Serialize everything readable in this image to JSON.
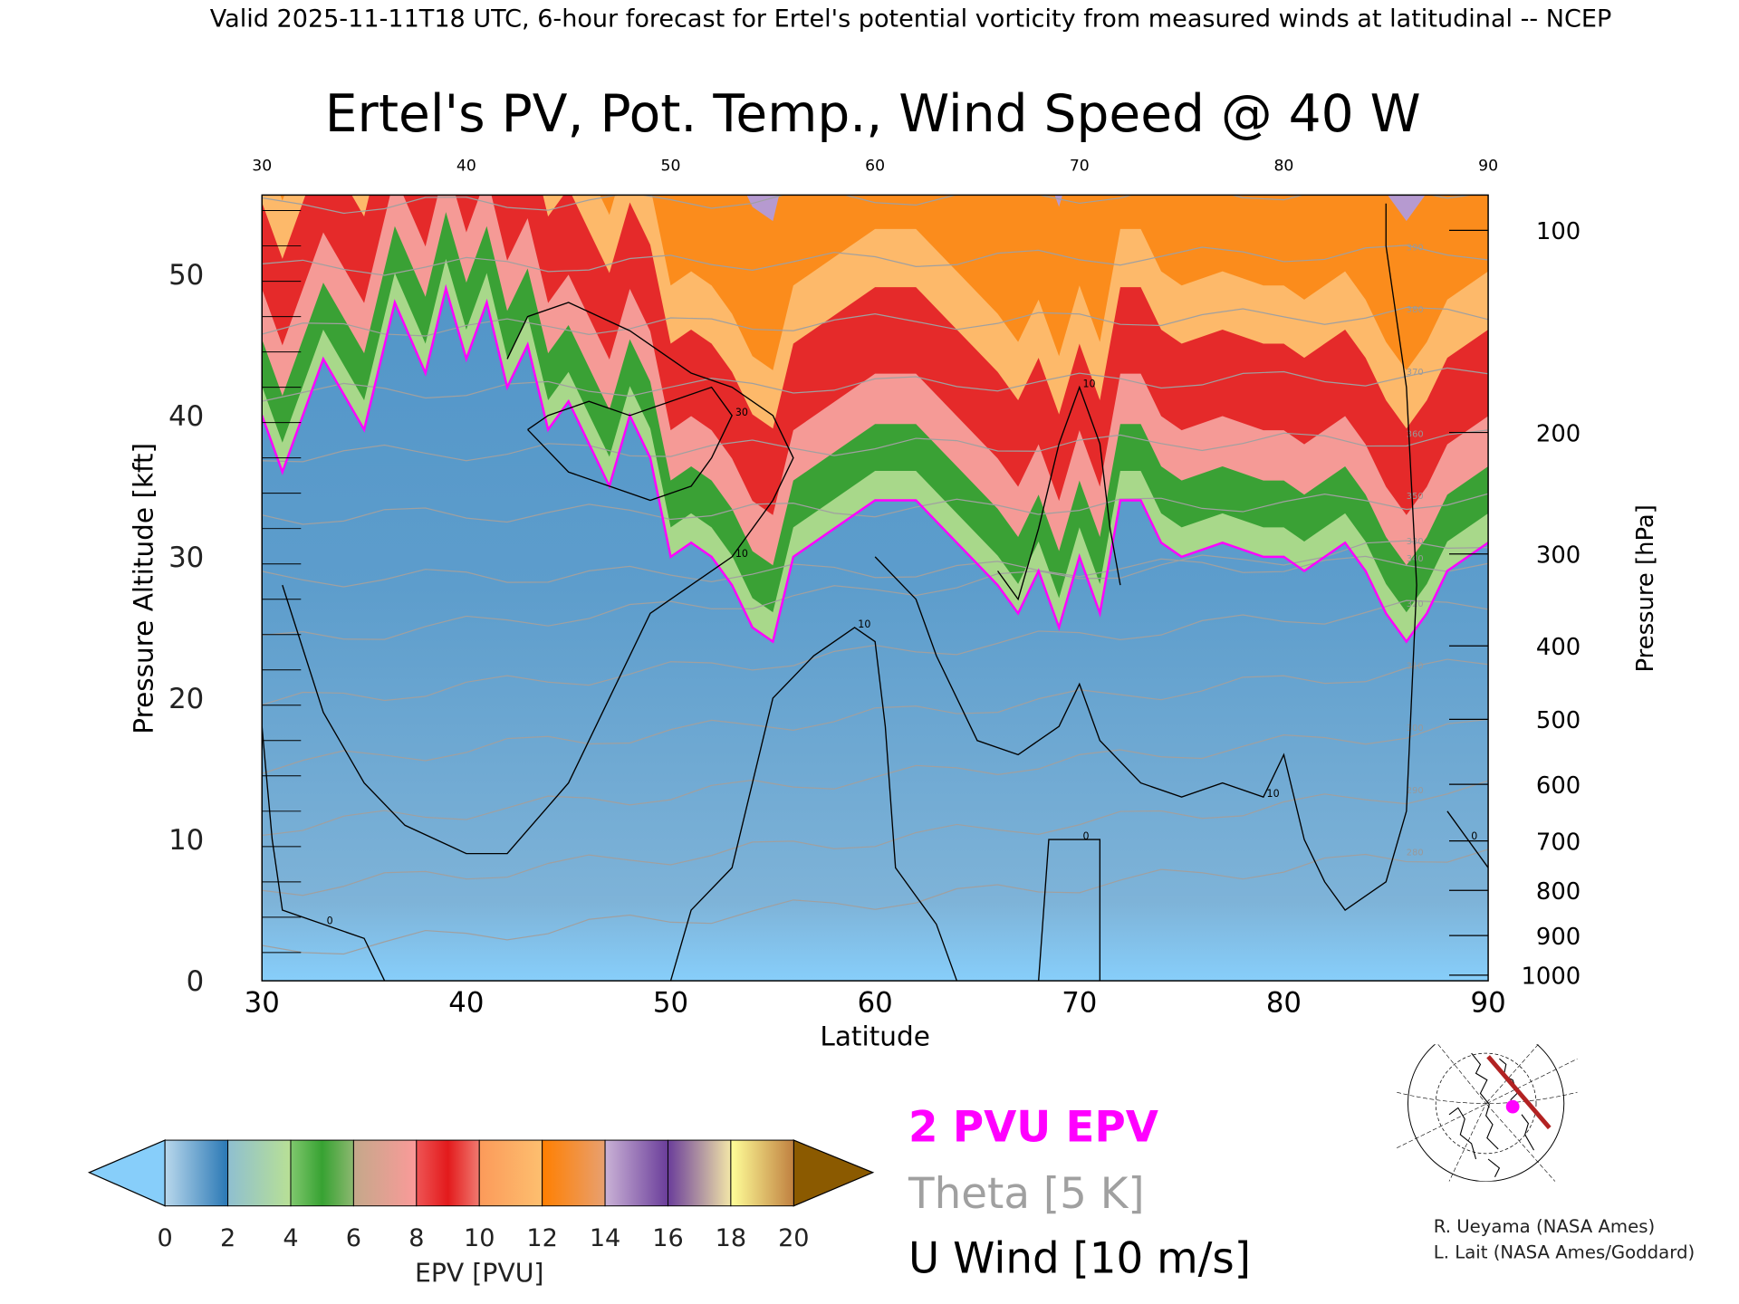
{
  "header": {
    "subtitle": "Valid 2025-11-11T18 UTC, 6-hour forecast for Ertel's potential vorticity from measured winds at latitudinal -- NCEP"
  },
  "chart_data": {
    "type": "heatmap",
    "title": "Ertel's PV, Pot. Temp., Wind Speed @ 40 W",
    "xlabel": "Latitude",
    "ylabel": "Pressure Altitude [kft]",
    "ylabel_right": "Pressure [hPa]",
    "xlim": [
      30,
      90
    ],
    "ylim": [
      0,
      55.6
    ],
    "x_ticks": [
      "30",
      "40",
      "50",
      "60",
      "70",
      "80",
      "90"
    ],
    "x_tick_values": [
      30,
      40,
      50,
      60,
      70,
      80,
      90
    ],
    "y_ticks": [
      "0",
      "10",
      "20",
      "30",
      "40",
      "50"
    ],
    "y_tick_values": [
      0,
      10,
      20,
      30,
      40,
      50
    ],
    "pressure_ticks": [
      {
        "label": "100",
        "kft": 53.1
      },
      {
        "label": "200",
        "kft": 38.8
      },
      {
        "label": "300",
        "kft": 30.2
      },
      {
        "label": "400",
        "kft": 23.7
      },
      {
        "label": "500",
        "kft": 18.5
      },
      {
        "label": "600",
        "kft": 13.9
      },
      {
        "label": "700",
        "kft": 9.9
      },
      {
        "label": "800",
        "kft": 6.4
      },
      {
        "label": "900",
        "kft": 3.2
      },
      {
        "label": "1000",
        "kft": 0.4
      }
    ],
    "pv_2pvu_line": [
      [
        30,
        40
      ],
      [
        31,
        36
      ],
      [
        33,
        44
      ],
      [
        35,
        39
      ],
      [
        36.5,
        48
      ],
      [
        38,
        43
      ],
      [
        39,
        49
      ],
      [
        40,
        44
      ],
      [
        41,
        48
      ],
      [
        42,
        42
      ],
      [
        43,
        45
      ],
      [
        44,
        39
      ],
      [
        45,
        41
      ],
      [
        46,
        38
      ],
      [
        47,
        35
      ],
      [
        48,
        40
      ],
      [
        49,
        37
      ],
      [
        50,
        30
      ],
      [
        51,
        31
      ],
      [
        52,
        30
      ],
      [
        53,
        28
      ],
      [
        54,
        25
      ],
      [
        55,
        24
      ],
      [
        56,
        30
      ],
      [
        58,
        32
      ],
      [
        60,
        34
      ],
      [
        62,
        34
      ],
      [
        64,
        31
      ],
      [
        66,
        28
      ],
      [
        67,
        26
      ],
      [
        68,
        29
      ],
      [
        69,
        25
      ],
      [
        70,
        30
      ],
      [
        71,
        26
      ],
      [
        72,
        34
      ],
      [
        73,
        34
      ],
      [
        74,
        31
      ],
      [
        75,
        30
      ],
      [
        77,
        31
      ],
      [
        79,
        30
      ],
      [
        80,
        30
      ],
      [
        81,
        29
      ],
      [
        82,
        30
      ],
      [
        83,
        31
      ],
      [
        84,
        29
      ],
      [
        85,
        26
      ],
      [
        86,
        24
      ],
      [
        87,
        26
      ],
      [
        88,
        29
      ],
      [
        90,
        31
      ]
    ],
    "pv_bands_above_tropopause": [
      {
        "pvu": 2,
        "offset_kft": 0,
        "color": "#a8d88a"
      },
      {
        "pvu": 5,
        "offset_kft": 2,
        "color": "#3aa135"
      },
      {
        "pvu": 7,
        "offset_kft": 5,
        "color": "#f59a96"
      },
      {
        "pvu": 9,
        "offset_kft": 8,
        "color": "#e52a2a"
      },
      {
        "pvu": 11,
        "offset_kft": 13,
        "color": "#fdb96a"
      },
      {
        "pvu": 13,
        "offset_kft": 16,
        "color": "#fb8c1c"
      },
      {
        "pvu": 15,
        "offset_kft": 24,
        "color": "#b69ad0"
      },
      {
        "pvu": 17,
        "offset_kft": 27,
        "color": "#6e46a0"
      }
    ],
    "u_wind_contours": [
      {
        "label": "10",
        "points": [
          [
            31,
            28
          ],
          [
            33,
            19
          ],
          [
            35,
            14
          ],
          [
            37,
            11
          ],
          [
            40,
            9
          ],
          [
            42,
            9
          ],
          [
            45,
            14
          ],
          [
            47,
            20
          ],
          [
            49,
            26
          ],
          [
            51,
            28
          ],
          [
            53,
            30
          ],
          [
            55,
            34
          ],
          [
            56,
            37
          ],
          [
            55,
            40
          ],
          [
            53,
            42
          ],
          [
            51,
            43
          ],
          [
            48,
            46
          ],
          [
            45,
            48
          ],
          [
            43,
            47
          ],
          [
            42,
            44
          ]
        ]
      },
      {
        "label": "30",
        "points": [
          [
            43,
            39
          ],
          [
            45,
            36
          ],
          [
            47,
            35
          ],
          [
            49,
            34
          ],
          [
            51,
            35
          ],
          [
            52,
            37
          ],
          [
            53,
            40
          ],
          [
            52,
            42
          ],
          [
            50,
            41
          ],
          [
            48,
            40
          ],
          [
            46,
            41
          ],
          [
            44,
            40
          ],
          [
            43,
            39
          ]
        ]
      },
      {
        "label": "10",
        "points": [
          [
            50,
            0
          ],
          [
            51,
            5
          ],
          [
            53,
            8
          ],
          [
            54,
            14
          ],
          [
            55,
            20
          ],
          [
            57,
            23
          ],
          [
            59,
            25
          ],
          [
            60,
            24
          ],
          [
            60.5,
            18
          ],
          [
            61,
            8
          ],
          [
            63,
            4
          ],
          [
            64,
            0
          ]
        ]
      },
      {
        "label": "10",
        "points": [
          [
            60,
            30
          ],
          [
            62,
            27
          ],
          [
            63,
            23
          ],
          [
            65,
            17
          ],
          [
            67,
            16
          ],
          [
            69,
            18
          ],
          [
            70,
            21
          ],
          [
            71,
            17
          ],
          [
            73,
            14
          ],
          [
            75,
            13
          ],
          [
            77,
            14
          ],
          [
            79,
            13
          ],
          [
            80,
            16
          ],
          [
            81,
            10
          ],
          [
            82,
            7
          ],
          [
            83,
            5
          ],
          [
            85,
            7
          ],
          [
            86,
            12
          ],
          [
            86.5,
            28
          ],
          [
            86,
            42
          ],
          [
            85,
            52
          ],
          [
            85,
            55
          ]
        ]
      },
      {
        "label": "0",
        "points": [
          [
            30,
            18
          ],
          [
            30.5,
            10
          ],
          [
            31,
            5
          ],
          [
            33,
            4
          ],
          [
            35,
            3
          ],
          [
            36,
            0
          ]
        ]
      },
      {
        "label": "10",
        "points": [
          [
            66,
            29
          ],
          [
            67,
            27
          ],
          [
            68,
            32
          ],
          [
            69,
            38
          ],
          [
            70,
            42
          ],
          [
            71,
            38
          ],
          [
            71.5,
            32
          ],
          [
            72,
            28
          ]
        ]
      },
      {
        "label": "0",
        "points": [
          [
            68,
            0
          ],
          [
            68.5,
            10
          ],
          [
            69,
            10
          ],
          [
            70,
            10
          ],
          [
            71,
            10
          ],
          [
            71,
            0
          ]
        ]
      },
      {
        "label": "0",
        "points": [
          [
            88,
            12
          ],
          [
            89,
            10
          ],
          [
            90,
            8
          ]
        ]
      }
    ],
    "theta_levels_K": [
      280,
      290,
      300,
      310,
      320,
      330,
      340,
      350,
      360,
      370,
      380,
      390,
      400
    ],
    "legend": {
      "pv_line": "2 PVU EPV",
      "theta": "Theta [5 K]",
      "u_wind": "U Wind [10 m/s]",
      "pv_color": "#ff00ff",
      "theta_color": "#a0a0a0"
    },
    "colorbar": {
      "label": "EPV [PVU]",
      "ticks": [
        "0",
        "2",
        "4",
        "6",
        "8",
        "10",
        "12",
        "14",
        "16",
        "18",
        "20"
      ],
      "segments": [
        [
          "#b9d8ec",
          "#2a78b5"
        ],
        [
          "#8fbfd0",
          "#b8e095"
        ],
        [
          "#80c86e",
          "#37a232",
          "#8cb870"
        ],
        [
          "#c4a88a",
          "#fb9a99"
        ],
        [
          "#ee5555",
          "#e31a1c",
          "#f07a70"
        ],
        [
          "#fc9a5a",
          "#fdbf6f"
        ],
        [
          "#ff7f00",
          "#e8a070"
        ],
        [
          "#cab2d6",
          "#6a3d9a"
        ],
        [
          "#6a3d9a",
          "#f2e6a8"
        ],
        [
          "#ffff99",
          "#c08040"
        ]
      ],
      "under_color": "#87cefa",
      "over_color": "#8b5a00"
    }
  },
  "credits": {
    "line1": "R. Ueyama (NASA Ames)",
    "line2": "L. Lait (NASA Ames/Goddard)"
  },
  "map": {
    "track_color": "#b22222",
    "marker_color": "#ff00ff"
  }
}
